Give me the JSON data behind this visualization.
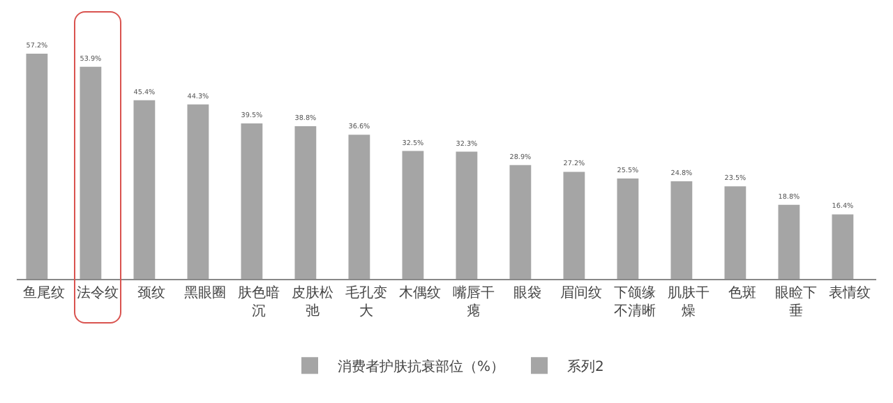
{
  "chart_data": {
    "type": "bar",
    "categories": [
      "鱼尾纹",
      "法令纹",
      "颈纹",
      "黑眼圈",
      "肤色暗沉",
      "皮肤松弛",
      "毛孔变大",
      "木偶纹",
      "嘴唇干瘪",
      "眼袋",
      "眉间纹",
      "下颌缘不清晰",
      "肌肤干燥",
      "色斑",
      "眼睑下垂",
      "表情纹"
    ],
    "series": [
      {
        "name": "消费者护肤抗衰部位（%）",
        "color": "#a5a5a5",
        "values": [
          57.2,
          53.9,
          45.4,
          44.3,
          39.5,
          38.8,
          36.6,
          32.5,
          32.3,
          28.9,
          27.2,
          25.5,
          24.8,
          23.5,
          18.8,
          16.4
        ],
        "value_labels": [
          "57.2%",
          "53.9%",
          "45.4%",
          "44.3%",
          "39.5%",
          "38.8%",
          "36.6%",
          "32.5%",
          "32.3%",
          "28.9%",
          "27.2%",
          "25.5%",
          "24.8%",
          "23.5%",
          "18.8%",
          "16.4%"
        ]
      },
      {
        "name": "系列2",
        "color": "#a5a5a5",
        "values": [
          null,
          null,
          null,
          null,
          null,
          null,
          null,
          null,
          null,
          null,
          null,
          null,
          null,
          null,
          null,
          null
        ]
      }
    ],
    "legend": "bottom",
    "grid": false
  }
}
